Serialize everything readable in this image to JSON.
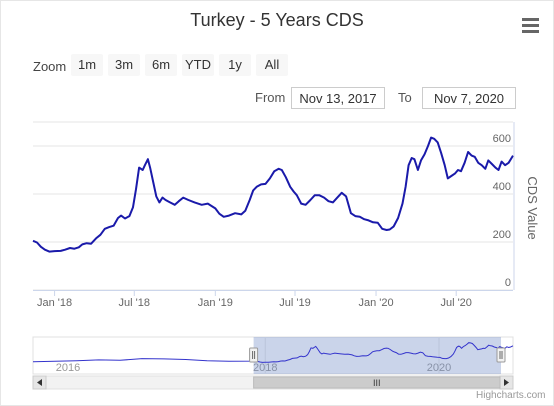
{
  "chart_data": {
    "type": "line",
    "title": "Turkey - 5 Years CDS",
    "ylabel": "CDS Value",
    "ylim": [
      0,
      700
    ],
    "y_ticks": [
      0,
      200,
      400,
      600
    ],
    "x_range": [
      "2017-11-13",
      "2020-11-07"
    ],
    "x_tick_labels": [
      "Jan '18",
      "Jul '18",
      "Jan '19",
      "Jul '19",
      "Jan '20",
      "Jul '20"
    ],
    "x_tick_dates": [
      "2018-01-01",
      "2018-07-01",
      "2019-01-01",
      "2019-07-01",
      "2020-01-01",
      "2020-07-01"
    ],
    "line_color": "#1a1aaa",
    "grid": true,
    "series": [
      {
        "values": [
          [
            "2017-11-13",
            205
          ],
          [
            "2017-11-22",
            198
          ],
          [
            "2017-12-01",
            180
          ],
          [
            "2017-12-10",
            168
          ],
          [
            "2017-12-20",
            160
          ],
          [
            "2018-01-01",
            162
          ],
          [
            "2018-01-15",
            163
          ],
          [
            "2018-01-25",
            168
          ],
          [
            "2018-02-05",
            175
          ],
          [
            "2018-02-15",
            172
          ],
          [
            "2018-02-25",
            178
          ],
          [
            "2018-03-05",
            190
          ],
          [
            "2018-03-15",
            195
          ],
          [
            "2018-03-25",
            193
          ],
          [
            "2018-04-05",
            215
          ],
          [
            "2018-04-15",
            230
          ],
          [
            "2018-04-25",
            255
          ],
          [
            "2018-05-05",
            262
          ],
          [
            "2018-05-15",
            268
          ],
          [
            "2018-05-25",
            300
          ],
          [
            "2018-06-01",
            310
          ],
          [
            "2018-06-10",
            298
          ],
          [
            "2018-06-20",
            308
          ],
          [
            "2018-06-28",
            345
          ],
          [
            "2018-07-05",
            420
          ],
          [
            "2018-07-12",
            510
          ],
          [
            "2018-07-20",
            500
          ],
          [
            "2018-07-25",
            520
          ],
          [
            "2018-08-01",
            545
          ],
          [
            "2018-08-06",
            510
          ],
          [
            "2018-08-13",
            450
          ],
          [
            "2018-08-20",
            390
          ],
          [
            "2018-08-27",
            365
          ],
          [
            "2018-09-03",
            385
          ],
          [
            "2018-09-10",
            375
          ],
          [
            "2018-09-20",
            365
          ],
          [
            "2018-10-01",
            355
          ],
          [
            "2018-10-10",
            370
          ],
          [
            "2018-10-20",
            385
          ],
          [
            "2018-11-01",
            375
          ],
          [
            "2018-11-15",
            365
          ],
          [
            "2018-12-01",
            355
          ],
          [
            "2018-12-15",
            360
          ],
          [
            "2019-01-01",
            340
          ],
          [
            "2019-01-10",
            318
          ],
          [
            "2019-01-20",
            305
          ],
          [
            "2019-02-01",
            310
          ],
          [
            "2019-02-15",
            320
          ],
          [
            "2019-03-01",
            315
          ],
          [
            "2019-03-10",
            330
          ],
          [
            "2019-03-20",
            375
          ],
          [
            "2019-03-28",
            415
          ],
          [
            "2019-04-05",
            430
          ],
          [
            "2019-04-15",
            440
          ],
          [
            "2019-04-25",
            442
          ],
          [
            "2019-05-05",
            465
          ],
          [
            "2019-05-15",
            495
          ],
          [
            "2019-05-25",
            505
          ],
          [
            "2019-06-01",
            500
          ],
          [
            "2019-06-10",
            470
          ],
          [
            "2019-06-20",
            430
          ],
          [
            "2019-06-28",
            410
          ],
          [
            "2019-07-05",
            395
          ],
          [
            "2019-07-15",
            360
          ],
          [
            "2019-07-25",
            355
          ],
          [
            "2019-08-05",
            375
          ],
          [
            "2019-08-15",
            395
          ],
          [
            "2019-08-25",
            395
          ],
          [
            "2019-09-05",
            385
          ],
          [
            "2019-09-15",
            370
          ],
          [
            "2019-09-25",
            365
          ],
          [
            "2019-10-05",
            385
          ],
          [
            "2019-10-15",
            405
          ],
          [
            "2019-10-25",
            390
          ],
          [
            "2019-11-05",
            320
          ],
          [
            "2019-11-15",
            308
          ],
          [
            "2019-11-25",
            305
          ],
          [
            "2019-12-05",
            295
          ],
          [
            "2019-12-15",
            290
          ],
          [
            "2019-12-25",
            282
          ],
          [
            "2020-01-05",
            280
          ],
          [
            "2020-01-15",
            255
          ],
          [
            "2020-01-25",
            250
          ],
          [
            "2020-02-01",
            252
          ],
          [
            "2020-02-10",
            265
          ],
          [
            "2020-02-20",
            300
          ],
          [
            "2020-03-01",
            360
          ],
          [
            "2020-03-08",
            430
          ],
          [
            "2020-03-15",
            520
          ],
          [
            "2020-03-22",
            550
          ],
          [
            "2020-03-28",
            545
          ],
          [
            "2020-04-05",
            500
          ],
          [
            "2020-04-12",
            540
          ],
          [
            "2020-04-20",
            565
          ],
          [
            "2020-04-28",
            600
          ],
          [
            "2020-05-05",
            635
          ],
          [
            "2020-05-12",
            630
          ],
          [
            "2020-05-20",
            615
          ],
          [
            "2020-05-28",
            570
          ],
          [
            "2020-06-05",
            520
          ],
          [
            "2020-06-12",
            465
          ],
          [
            "2020-06-20",
            475
          ],
          [
            "2020-06-28",
            485
          ],
          [
            "2020-07-05",
            500
          ],
          [
            "2020-07-12",
            495
          ],
          [
            "2020-07-20",
            530
          ],
          [
            "2020-07-28",
            575
          ],
          [
            "2020-08-05",
            560
          ],
          [
            "2020-08-12",
            555
          ],
          [
            "2020-08-20",
            530
          ],
          [
            "2020-08-28",
            520
          ],
          [
            "2020-09-05",
            505
          ],
          [
            "2020-09-12",
            540
          ],
          [
            "2020-09-20",
            525
          ],
          [
            "2020-09-28",
            510
          ],
          [
            "2020-10-05",
            500
          ],
          [
            "2020-10-12",
            535
          ],
          [
            "2020-10-20",
            520
          ],
          [
            "2020-10-28",
            530
          ],
          [
            "2020-11-07",
            560
          ]
        ]
      }
    ]
  },
  "range_selector": {
    "zoom_label": "Zoom",
    "buttons": [
      "1m",
      "3m",
      "6m",
      "YTD",
      "1y",
      "All"
    ],
    "from_label": "From",
    "from_value": "Nov 13, 2017",
    "to_label": "To",
    "to_value": "Nov 7, 2020"
  },
  "navigator": {
    "tick_labels": [
      "2018",
      "2020"
    ],
    "tick_dates": [
      "2018-01-01",
      "2020-01-01"
    ],
    "tick_partial_label": "2016",
    "selection": [
      "2017-11-13",
      "2020-11-07"
    ],
    "scrollbar_grip": "III"
  },
  "menu": {
    "icon": "hamburger-menu-icon"
  },
  "credits": "Highcharts.com"
}
